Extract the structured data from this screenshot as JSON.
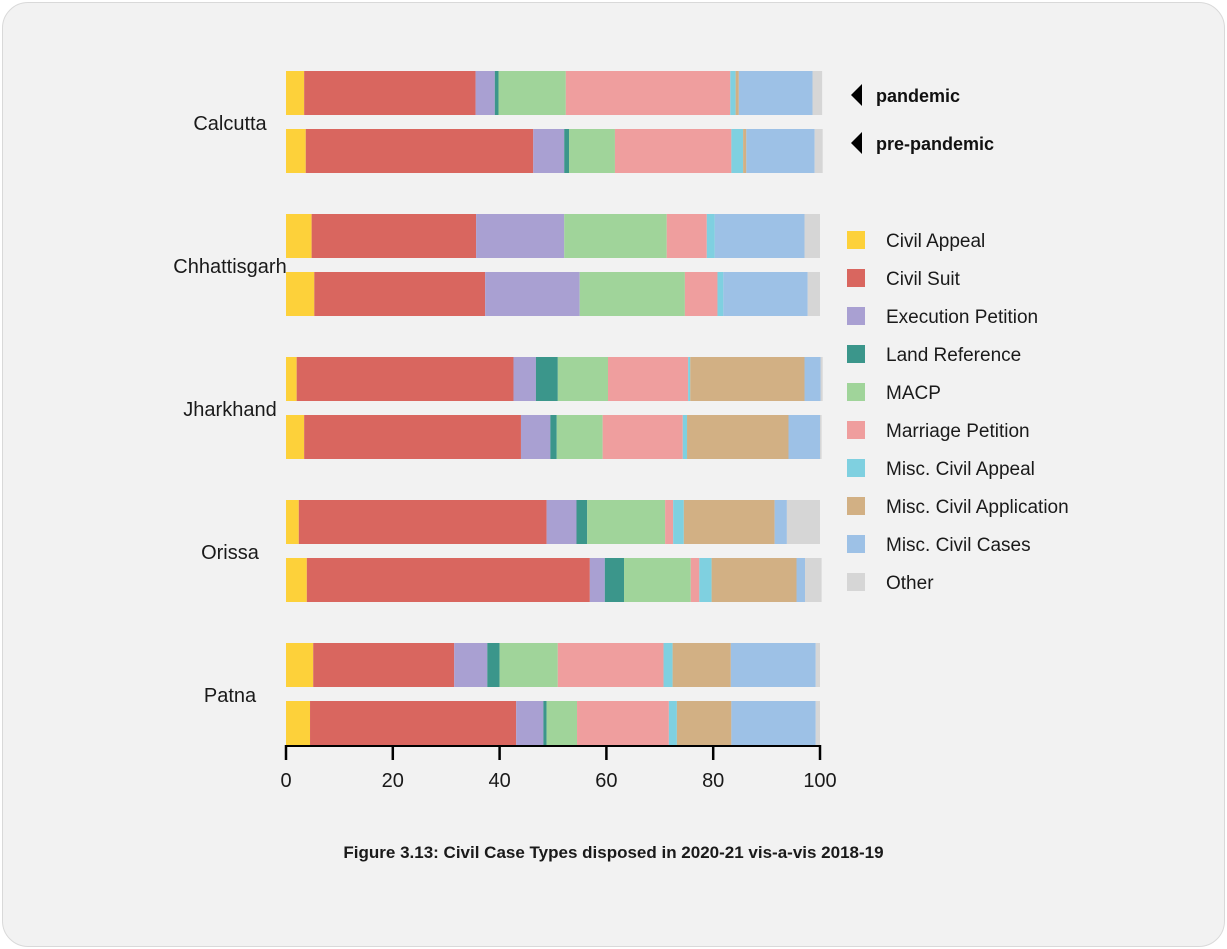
{
  "caption": "Figure 3.13: Civil Case Types disposed in 2020-21 vis-a-vis 2018-19",
  "chart_data": {
    "type": "bar",
    "orientation": "horizontal",
    "stacked": true,
    "xlim": [
      0,
      100
    ],
    "xticks": [
      "0",
      "20",
      "40",
      "60",
      "80",
      "100"
    ],
    "grid": false,
    "legend_position": "right",
    "annotations": [
      "pandemic",
      "pre-pandemic"
    ],
    "categories": [
      "Calcutta",
      "Chhattisgarh",
      "Jharkhand",
      "Orissa",
      "Patna"
    ],
    "series": [
      {
        "name": "Civil Appeal",
        "color": "#fdd13a",
        "pandemic": [
          3.4,
          4.8,
          2.0,
          2.4,
          5.1
        ],
        "pre_pandemic": [
          3.7,
          5.3,
          3.4,
          3.9,
          4.5
        ]
      },
      {
        "name": "Civil Suit",
        "color": "#d9665f",
        "pandemic": [
          32.1,
          30.8,
          40.6,
          46.4,
          26.4
        ],
        "pre_pandemic": [
          42.6,
          32.0,
          40.6,
          53.0,
          38.6
        ]
      },
      {
        "name": "Execution Petition",
        "color": "#a9a0d2",
        "pandemic": [
          3.6,
          16.5,
          4.2,
          5.6,
          6.2
        ],
        "pre_pandemic": [
          5.8,
          17.7,
          5.5,
          2.8,
          5.1
        ]
      },
      {
        "name": "Land Reference",
        "color": "#3b968b",
        "pandemic": [
          0.7,
          0.0,
          4.1,
          2.0,
          2.3
        ],
        "pre_pandemic": [
          0.9,
          0.0,
          1.2,
          3.6,
          0.6
        ]
      },
      {
        "name": "MACP",
        "color": "#a0d49a",
        "pandemic": [
          12.6,
          19.2,
          9.4,
          14.6,
          10.9
        ],
        "pre_pandemic": [
          8.6,
          19.7,
          8.6,
          12.5,
          5.7
        ]
      },
      {
        "name": "Marriage Petition",
        "color": "#ef9e9e",
        "pandemic": [
          30.8,
          7.5,
          15.0,
          1.5,
          19.8
        ],
        "pre_pandemic": [
          21.8,
          6.1,
          15.0,
          1.6,
          17.2
        ]
      },
      {
        "name": "Misc. Civil Appeal",
        "color": "#7fd0e0",
        "pandemic": [
          1.0,
          1.5,
          0.4,
          2.0,
          1.7
        ],
        "pre_pandemic": [
          2.2,
          1.1,
          0.8,
          2.3,
          1.5
        ]
      },
      {
        "name": "Misc. Civil Application",
        "color": "#d2b084",
        "pandemic": [
          0.6,
          0.0,
          21.4,
          17.0,
          10.9
        ],
        "pre_pandemic": [
          0.6,
          0.0,
          19.0,
          15.9,
          10.2
        ]
      },
      {
        "name": "Misc. Civil Cases",
        "color": "#9dc1e6",
        "pandemic": [
          13.8,
          16.8,
          3.0,
          2.3,
          15.9
        ],
        "pre_pandemic": [
          12.8,
          15.8,
          5.9,
          1.6,
          15.8
        ]
      },
      {
        "name": "Other",
        "color": "#d6d6d6",
        "pandemic": [
          1.8,
          2.9,
          0.4,
          6.2,
          0.8
        ],
        "pre_pandemic": [
          1.5,
          2.3,
          0.3,
          3.1,
          0.8
        ]
      }
    ]
  }
}
